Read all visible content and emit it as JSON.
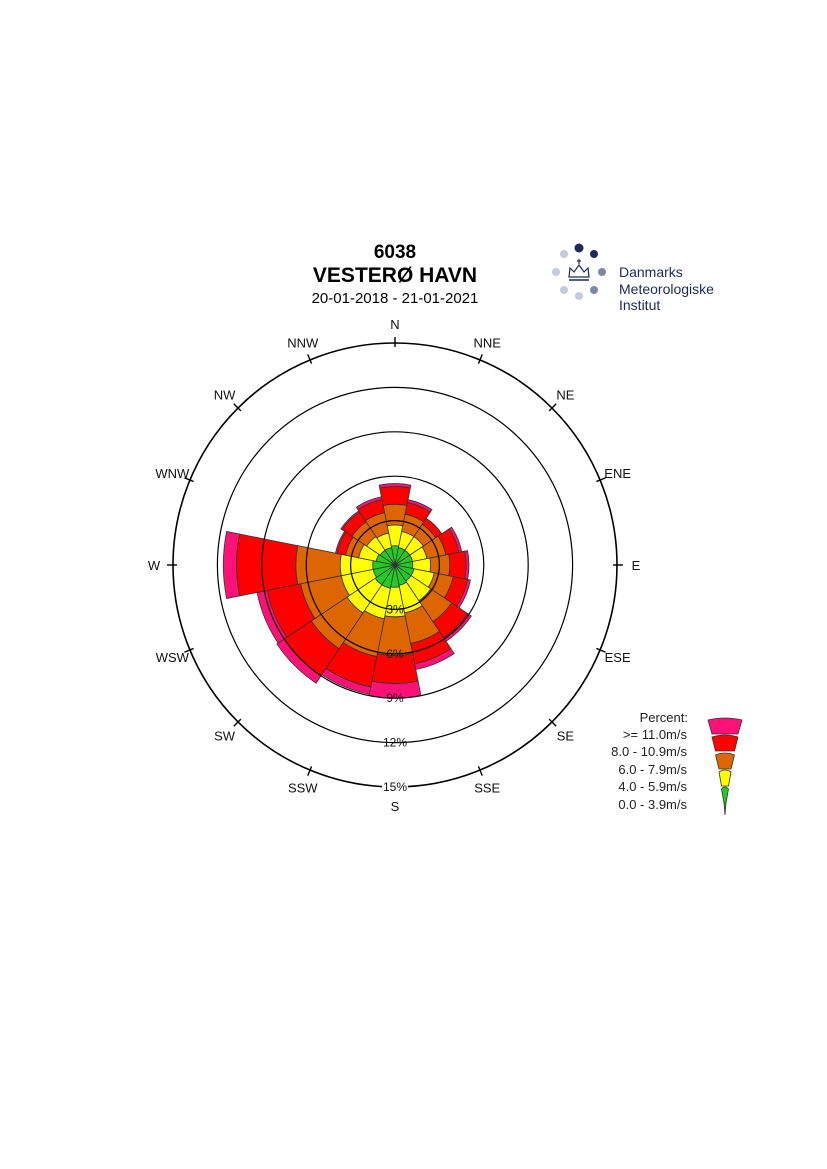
{
  "header": {
    "station_id": "6038",
    "station_name": "VESTERØ HAVN",
    "period": "20-01-2018 - 21-01-2021"
  },
  "logo": {
    "lines": [
      "Danmarks",
      "Meteorologiske",
      "Institut"
    ],
    "colors": {
      "dark": "#1c2a5a",
      "mid": "#7d88a8",
      "light": "#c5cad8"
    }
  },
  "chart_data": {
    "type": "wind-rose",
    "directions": [
      "N",
      "NNE",
      "NE",
      "ENE",
      "E",
      "ESE",
      "SE",
      "SSE",
      "S",
      "SSW",
      "SW",
      "WSW",
      "W",
      "WNW",
      "NW",
      "NNW"
    ],
    "radial_unit": "%",
    "radial_ticks": [
      3,
      6,
      9,
      12,
      15
    ],
    "radial_tick_labels": [
      "3%",
      "6%",
      "9%",
      "12%",
      "15%"
    ],
    "rmax": 15,
    "speed_bins": [
      "0.0 - 3.9m/s",
      "4.0 - 5.9m/s",
      "6.0 - 7.9m/s",
      "8.0 - 10.9m/s",
      ">= 11.0m/s"
    ],
    "bin_colors": [
      "#22cc22",
      "#ffff00",
      "#dd6600",
      "#ff0000",
      "#ff1177"
    ],
    "cumulative_percent": [
      [
        1.3,
        2.7,
        4.1,
        5.3,
        5.5
      ],
      [
        1.2,
        2.3,
        3.5,
        4.3,
        4.5
      ],
      [
        1.2,
        2.3,
        3.3,
        3.8,
        3.8
      ],
      [
        1.2,
        2.2,
        3.5,
        4.4,
        4.6
      ],
      [
        1.2,
        2.4,
        3.7,
        4.8,
        5.0
      ],
      [
        1.3,
        2.7,
        4.0,
        5.0,
        5.2
      ],
      [
        1.3,
        2.9,
        4.6,
        5.9,
        6.2
      ],
      [
        1.4,
        3.3,
        5.4,
        6.8,
        7.2
      ],
      [
        1.5,
        3.5,
        6.1,
        8.0,
        9.0
      ],
      [
        1.6,
        3.7,
        6.3,
        8.4,
        8.9
      ],
      [
        1.6,
        3.9,
        6.8,
        9.0,
        9.6
      ],
      [
        1.5,
        3.7,
        6.5,
        8.8,
        9.5
      ],
      [
        1.5,
        3.7,
        6.7,
        10.7,
        11.6
      ],
      [
        1.3,
        2.5,
        3.4,
        4.0,
        4.1
      ],
      [
        1.2,
        2.3,
        3.5,
        4.3,
        4.4
      ],
      [
        1.2,
        2.2,
        3.6,
        4.5,
        4.7
      ]
    ],
    "legend": {
      "title": "Percent:",
      "entries": [
        ">= 11.0m/s",
        "8.0 - 10.9m/s",
        "6.0 - 7.9m/s",
        "4.0 - 5.9m/s",
        "0.0 - 3.9m/s"
      ]
    }
  }
}
